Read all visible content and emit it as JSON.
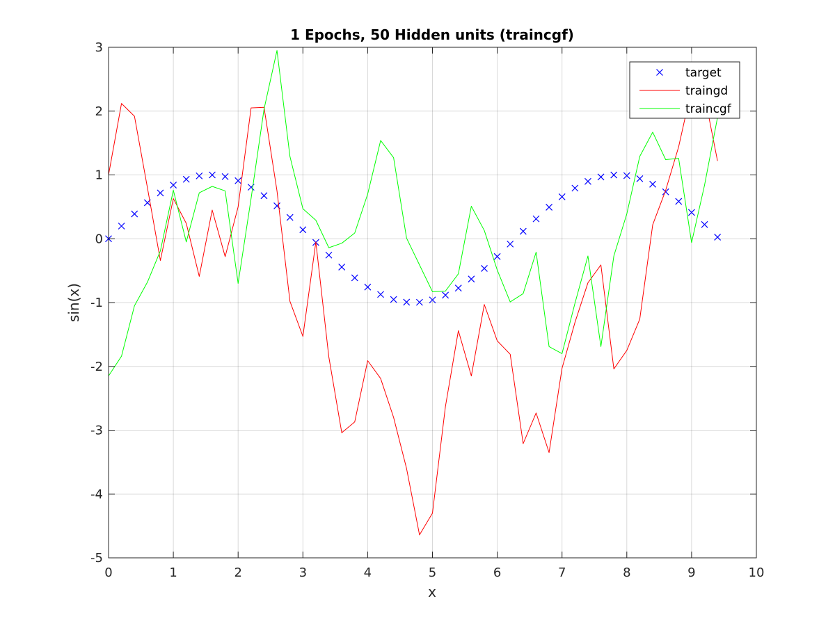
{
  "chart_data": {
    "type": "line",
    "title": "1 Epochs, 50 Hidden units (traincgf)",
    "xlabel": "x",
    "ylabel": "sin(x)",
    "xlim": [
      0,
      10
    ],
    "ylim": [
      -5,
      3
    ],
    "xticks": [
      0,
      1,
      2,
      3,
      4,
      5,
      6,
      7,
      8,
      9,
      10
    ],
    "yticks": [
      -5,
      -4,
      -3,
      -2,
      -1,
      0,
      1,
      2,
      3
    ],
    "grid": true,
    "legend_position": "top-right",
    "x": [
      0,
      0.2,
      0.4,
      0.6,
      0.8,
      1.0,
      1.2,
      1.4,
      1.6,
      1.8,
      2.0,
      2.2,
      2.4,
      2.6,
      2.8,
      3.0,
      3.2,
      3.4,
      3.6,
      3.8,
      4.0,
      4.2,
      4.4,
      4.6,
      4.8,
      5.0,
      5.2,
      5.4,
      5.6,
      5.8,
      6.0,
      6.2,
      6.4,
      6.6,
      6.8,
      7.0,
      7.2,
      7.4,
      7.6,
      7.8,
      8.0,
      8.2,
      8.4,
      8.6,
      8.8,
      9.0,
      9.2,
      9.4
    ],
    "series": [
      {
        "name": "target",
        "style": "markers-x",
        "color": "#0000ff",
        "values": [
          0,
          0.199,
          0.389,
          0.565,
          0.717,
          0.841,
          0.932,
          0.985,
          1.0,
          0.974,
          0.909,
          0.808,
          0.675,
          0.516,
          0.335,
          0.141,
          -0.058,
          -0.256,
          -0.443,
          -0.612,
          -0.757,
          -0.872,
          -0.952,
          -0.994,
          -0.996,
          -0.959,
          -0.883,
          -0.773,
          -0.631,
          -0.465,
          -0.279,
          -0.083,
          0.117,
          0.312,
          0.494,
          0.657,
          0.793,
          0.899,
          0.968,
          0.999,
          0.989,
          0.941,
          0.855,
          0.735,
          0.585,
          0.412,
          0.223,
          0.025
        ]
      },
      {
        "name": "traingd",
        "style": "line",
        "color": "#ff0000",
        "values": [
          1.0,
          2.12,
          1.92,
          0.8,
          -0.34,
          0.63,
          0.24,
          -0.59,
          0.45,
          -0.28,
          0.5,
          2.05,
          2.06,
          0.75,
          -0.98,
          -1.53,
          -0.05,
          -1.85,
          -3.04,
          -2.87,
          -1.91,
          -2.19,
          -2.8,
          -3.6,
          -4.64,
          -4.3,
          -2.63,
          -1.44,
          -2.15,
          -1.03,
          -1.6,
          -1.81,
          -3.21,
          -2.73,
          -3.35,
          -2.03,
          -1.31,
          -0.69,
          -0.41,
          -2.04,
          -1.75,
          -1.26,
          0.22,
          0.76,
          1.44,
          2.35,
          2.25,
          1.22
        ]
      },
      {
        "name": "traincgf",
        "style": "line",
        "color": "#00ff00",
        "values": [
          -2.15,
          -1.84,
          -1.05,
          -0.68,
          -0.19,
          0.76,
          -0.05,
          0.72,
          0.82,
          0.75,
          -0.7,
          0.63,
          2.03,
          2.95,
          1.29,
          0.47,
          0.29,
          -0.14,
          -0.07,
          0.09,
          0.7,
          1.54,
          1.27,
          0.01,
          -0.41,
          -0.83,
          -0.82,
          -0.55,
          0.51,
          0.13,
          -0.49,
          -0.99,
          -0.86,
          -0.21,
          -1.69,
          -1.8,
          -1.01,
          -0.27,
          -1.69,
          -0.27,
          0.39,
          1.29,
          1.67,
          1.24,
          1.26,
          -0.06,
          0.84,
          1.9
        ]
      }
    ]
  }
}
